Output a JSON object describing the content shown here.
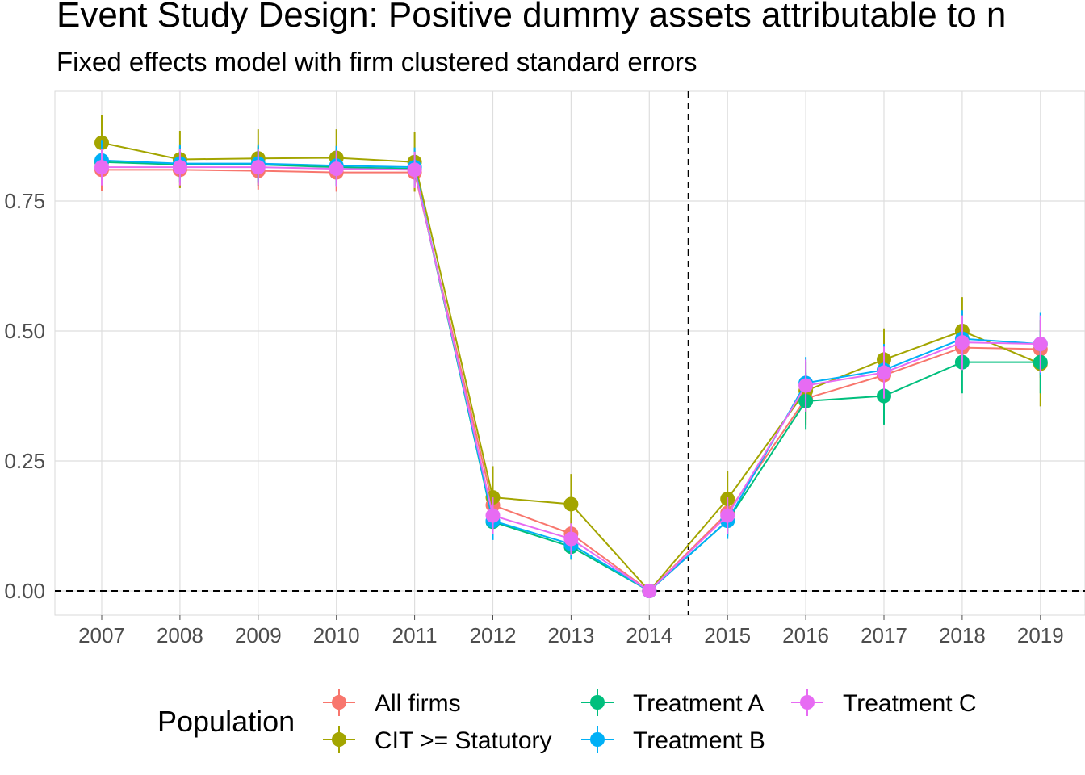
{
  "title": "Event Study Design: Positive dummy assets attributable to n",
  "subtitle": "Fixed effects model with firm clustered standard errors",
  "chart_data": {
    "type": "line",
    "title": "Event Study Design: Positive dummy assets attributable to n",
    "subtitle": "Fixed effects model with firm clustered standard errors",
    "xlabel": "",
    "ylabel": "",
    "x": [
      "2007",
      "2008",
      "2009",
      "2010",
      "2011",
      "2012",
      "2013",
      "2014",
      "2015",
      "2016",
      "2017",
      "2018",
      "2019"
    ],
    "y_ticks": [
      0.0,
      0.25,
      0.5,
      0.75
    ],
    "y_tick_labels": [
      "0.00",
      "0.25",
      "0.50",
      "0.75"
    ],
    "ylim": [
      -0.04,
      0.96
    ],
    "reference_lines": {
      "horizontal_y": 0.0,
      "vertical_between": [
        "2014",
        "2015"
      ]
    },
    "grid": true,
    "legend": {
      "title": "Population",
      "placement": "bottom"
    },
    "series": [
      {
        "name": "All firms",
        "color": "#F8766D",
        "values": [
          0.81,
          0.81,
          0.808,
          0.805,
          0.805,
          0.165,
          0.11,
          0.0,
          0.15,
          0.37,
          0.415,
          0.468,
          0.465
        ],
        "ci": [
          [
            0.77,
            0.85
          ],
          [
            0.775,
            0.845
          ],
          [
            0.772,
            0.844
          ],
          [
            0.768,
            0.842
          ],
          [
            0.768,
            0.842
          ],
          [
            0.13,
            0.2
          ],
          [
            0.08,
            0.14
          ],
          [
            0.0,
            0.0
          ],
          [
            0.115,
            0.185
          ],
          [
            0.32,
            0.42
          ],
          [
            0.37,
            0.46
          ],
          [
            0.42,
            0.515
          ],
          [
            0.41,
            0.52
          ]
        ]
      },
      {
        "name": "CIT >= Statutory",
        "color": "#A3A500",
        "values": [
          0.862,
          0.83,
          0.832,
          0.833,
          0.825,
          0.18,
          0.167,
          0.0,
          0.177,
          0.385,
          0.445,
          0.5,
          0.437
        ],
        "ci": [
          [
            0.81,
            0.915
          ],
          [
            0.775,
            0.885
          ],
          [
            0.778,
            0.888
          ],
          [
            0.778,
            0.888
          ],
          [
            0.768,
            0.882
          ],
          [
            0.12,
            0.24
          ],
          [
            0.11,
            0.225
          ],
          [
            0.0,
            0.0
          ],
          [
            0.125,
            0.23
          ],
          [
            0.33,
            0.44
          ],
          [
            0.385,
            0.505
          ],
          [
            0.435,
            0.565
          ],
          [
            0.355,
            0.52
          ]
        ]
      },
      {
        "name": "Treatment A",
        "color": "#00BF7D",
        "values": [
          0.825,
          0.82,
          0.82,
          0.815,
          0.812,
          0.133,
          0.085,
          0.0,
          0.135,
          0.365,
          0.375,
          0.44,
          0.44
        ],
        "ci": [
          [
            0.79,
            0.86
          ],
          [
            0.785,
            0.855
          ],
          [
            0.785,
            0.855
          ],
          [
            0.78,
            0.85
          ],
          [
            0.778,
            0.846
          ],
          [
            0.1,
            0.166
          ],
          [
            0.06,
            0.11
          ],
          [
            0.0,
            0.0
          ],
          [
            0.105,
            0.165
          ],
          [
            0.31,
            0.42
          ],
          [
            0.32,
            0.43
          ],
          [
            0.38,
            0.5
          ],
          [
            0.38,
            0.5
          ]
        ]
      },
      {
        "name": "Treatment B",
        "color": "#00B0F6",
        "values": [
          0.828,
          0.822,
          0.822,
          0.818,
          0.815,
          0.135,
          0.09,
          0.0,
          0.135,
          0.4,
          0.425,
          0.485,
          0.475
        ],
        "ci": [
          [
            0.79,
            0.866
          ],
          [
            0.785,
            0.859
          ],
          [
            0.785,
            0.859
          ],
          [
            0.78,
            0.856
          ],
          [
            0.777,
            0.853
          ],
          [
            0.098,
            0.172
          ],
          [
            0.062,
            0.118
          ],
          [
            0.0,
            0.0
          ],
          [
            0.1,
            0.17
          ],
          [
            0.35,
            0.45
          ],
          [
            0.375,
            0.475
          ],
          [
            0.43,
            0.54
          ],
          [
            0.415,
            0.535
          ]
        ]
      },
      {
        "name": "Treatment C",
        "color": "#E76BF3",
        "values": [
          0.815,
          0.815,
          0.815,
          0.812,
          0.81,
          0.145,
          0.1,
          0.0,
          0.145,
          0.395,
          0.42,
          0.478,
          0.475
        ],
        "ci": [
          [
            0.78,
            0.85
          ],
          [
            0.78,
            0.85
          ],
          [
            0.78,
            0.85
          ],
          [
            0.777,
            0.847
          ],
          [
            0.775,
            0.845
          ],
          [
            0.11,
            0.18
          ],
          [
            0.07,
            0.13
          ],
          [
            0.0,
            0.0
          ],
          [
            0.11,
            0.18
          ],
          [
            0.345,
            0.445
          ],
          [
            0.37,
            0.47
          ],
          [
            0.425,
            0.53
          ],
          [
            0.42,
            0.53
          ]
        ]
      }
    ]
  }
}
